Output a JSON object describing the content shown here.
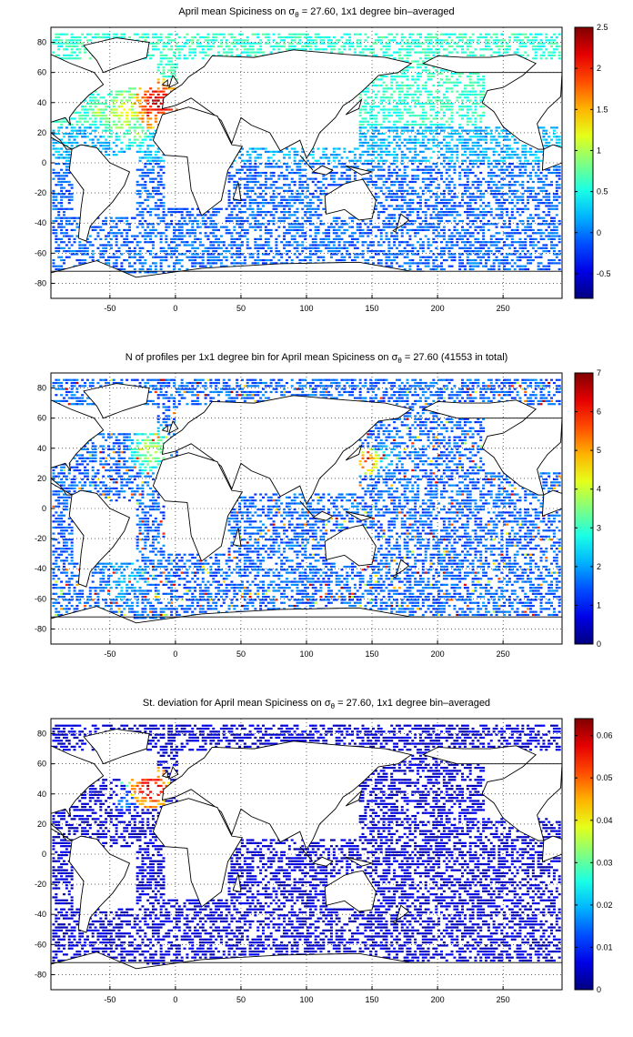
{
  "panels": [
    {
      "title_pre": "April mean Spiciness on σ",
      "title_sub": "θ",
      "title_post": " = 27.60, 1x1 degree bin–averaged",
      "colorbar_ticks": [
        "-0.5",
        "0",
        "0.5",
        "1",
        "1.5",
        "2",
        "2.5"
      ],
      "colorbar_range": [
        -0.8,
        2.5
      ]
    },
    {
      "title_pre": "N of profiles per 1x1 degree bin for April mean Spiciness on σ",
      "title_sub": "θ",
      "title_post": " = 27.60 (41553 in total)",
      "colorbar_ticks": [
        "0",
        "1",
        "2",
        "3",
        "4",
        "5",
        "6",
        "7"
      ],
      "colorbar_range": [
        0,
        7
      ]
    },
    {
      "title_pre": "St. deviation for April mean Spiciness on σ",
      "title_sub": "θ",
      "title_post": " = 27.60, 1x1 degree bin–averaged",
      "colorbar_ticks": [
        "0",
        "0.01",
        "0.02",
        "0.03",
        "0.04",
        "0.05",
        "0.06"
      ],
      "colorbar_range": [
        0,
        0.064
      ]
    }
  ],
  "map_axes": {
    "xticks": [
      "-50",
      "0",
      "50",
      "100",
      "150",
      "200",
      "250"
    ],
    "yticks": [
      "80",
      "60",
      "40",
      "20",
      "0",
      "-20",
      "-40",
      "-60",
      "-80"
    ],
    "xlim": [
      -95,
      295
    ],
    "ylim": [
      -90,
      90
    ],
    "grid": "dotted"
  },
  "colormap": "jet"
}
